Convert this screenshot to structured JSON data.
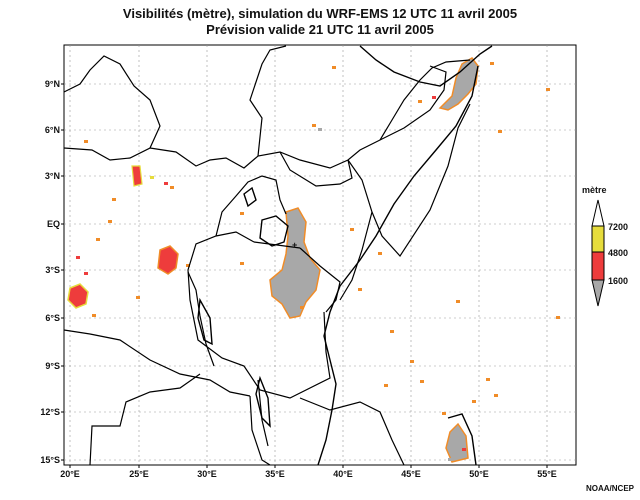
{
  "title_line1": "Visibilités (mètre), simulation du WRF-EMS 12 UTC 11 avril 2005",
  "title_line2": "Prévision valide 21 UTC 11 avril 2005",
  "legend": {
    "title": "mètre",
    "levels": [
      {
        "label": "7200",
        "color": "#ffffff"
      },
      {
        "label": "4800",
        "color": "#e6dc3c"
      },
      {
        "label": "1600",
        "color": "#ee3c3c"
      },
      {
        "label": "",
        "color": "#a8a8a8"
      }
    ]
  },
  "axes": {
    "lon_labels": [
      "20°E",
      "25°E",
      "30°E",
      "35°E",
      "40°E",
      "45°E",
      "50°E",
      "55°E"
    ],
    "lat_labels": [
      "9°N",
      "6°N",
      "3°N",
      "EQ",
      "3°S",
      "6°S",
      "9°S",
      "12°S",
      "15°S"
    ]
  },
  "colors": {
    "gray": "#a8a8a8",
    "red": "#ee3c3c",
    "orange": "#f08c28",
    "yellow": "#e6dc3c",
    "border": "#000000",
    "grid": "#999999"
  },
  "credit": "NOAA/NCEP"
}
